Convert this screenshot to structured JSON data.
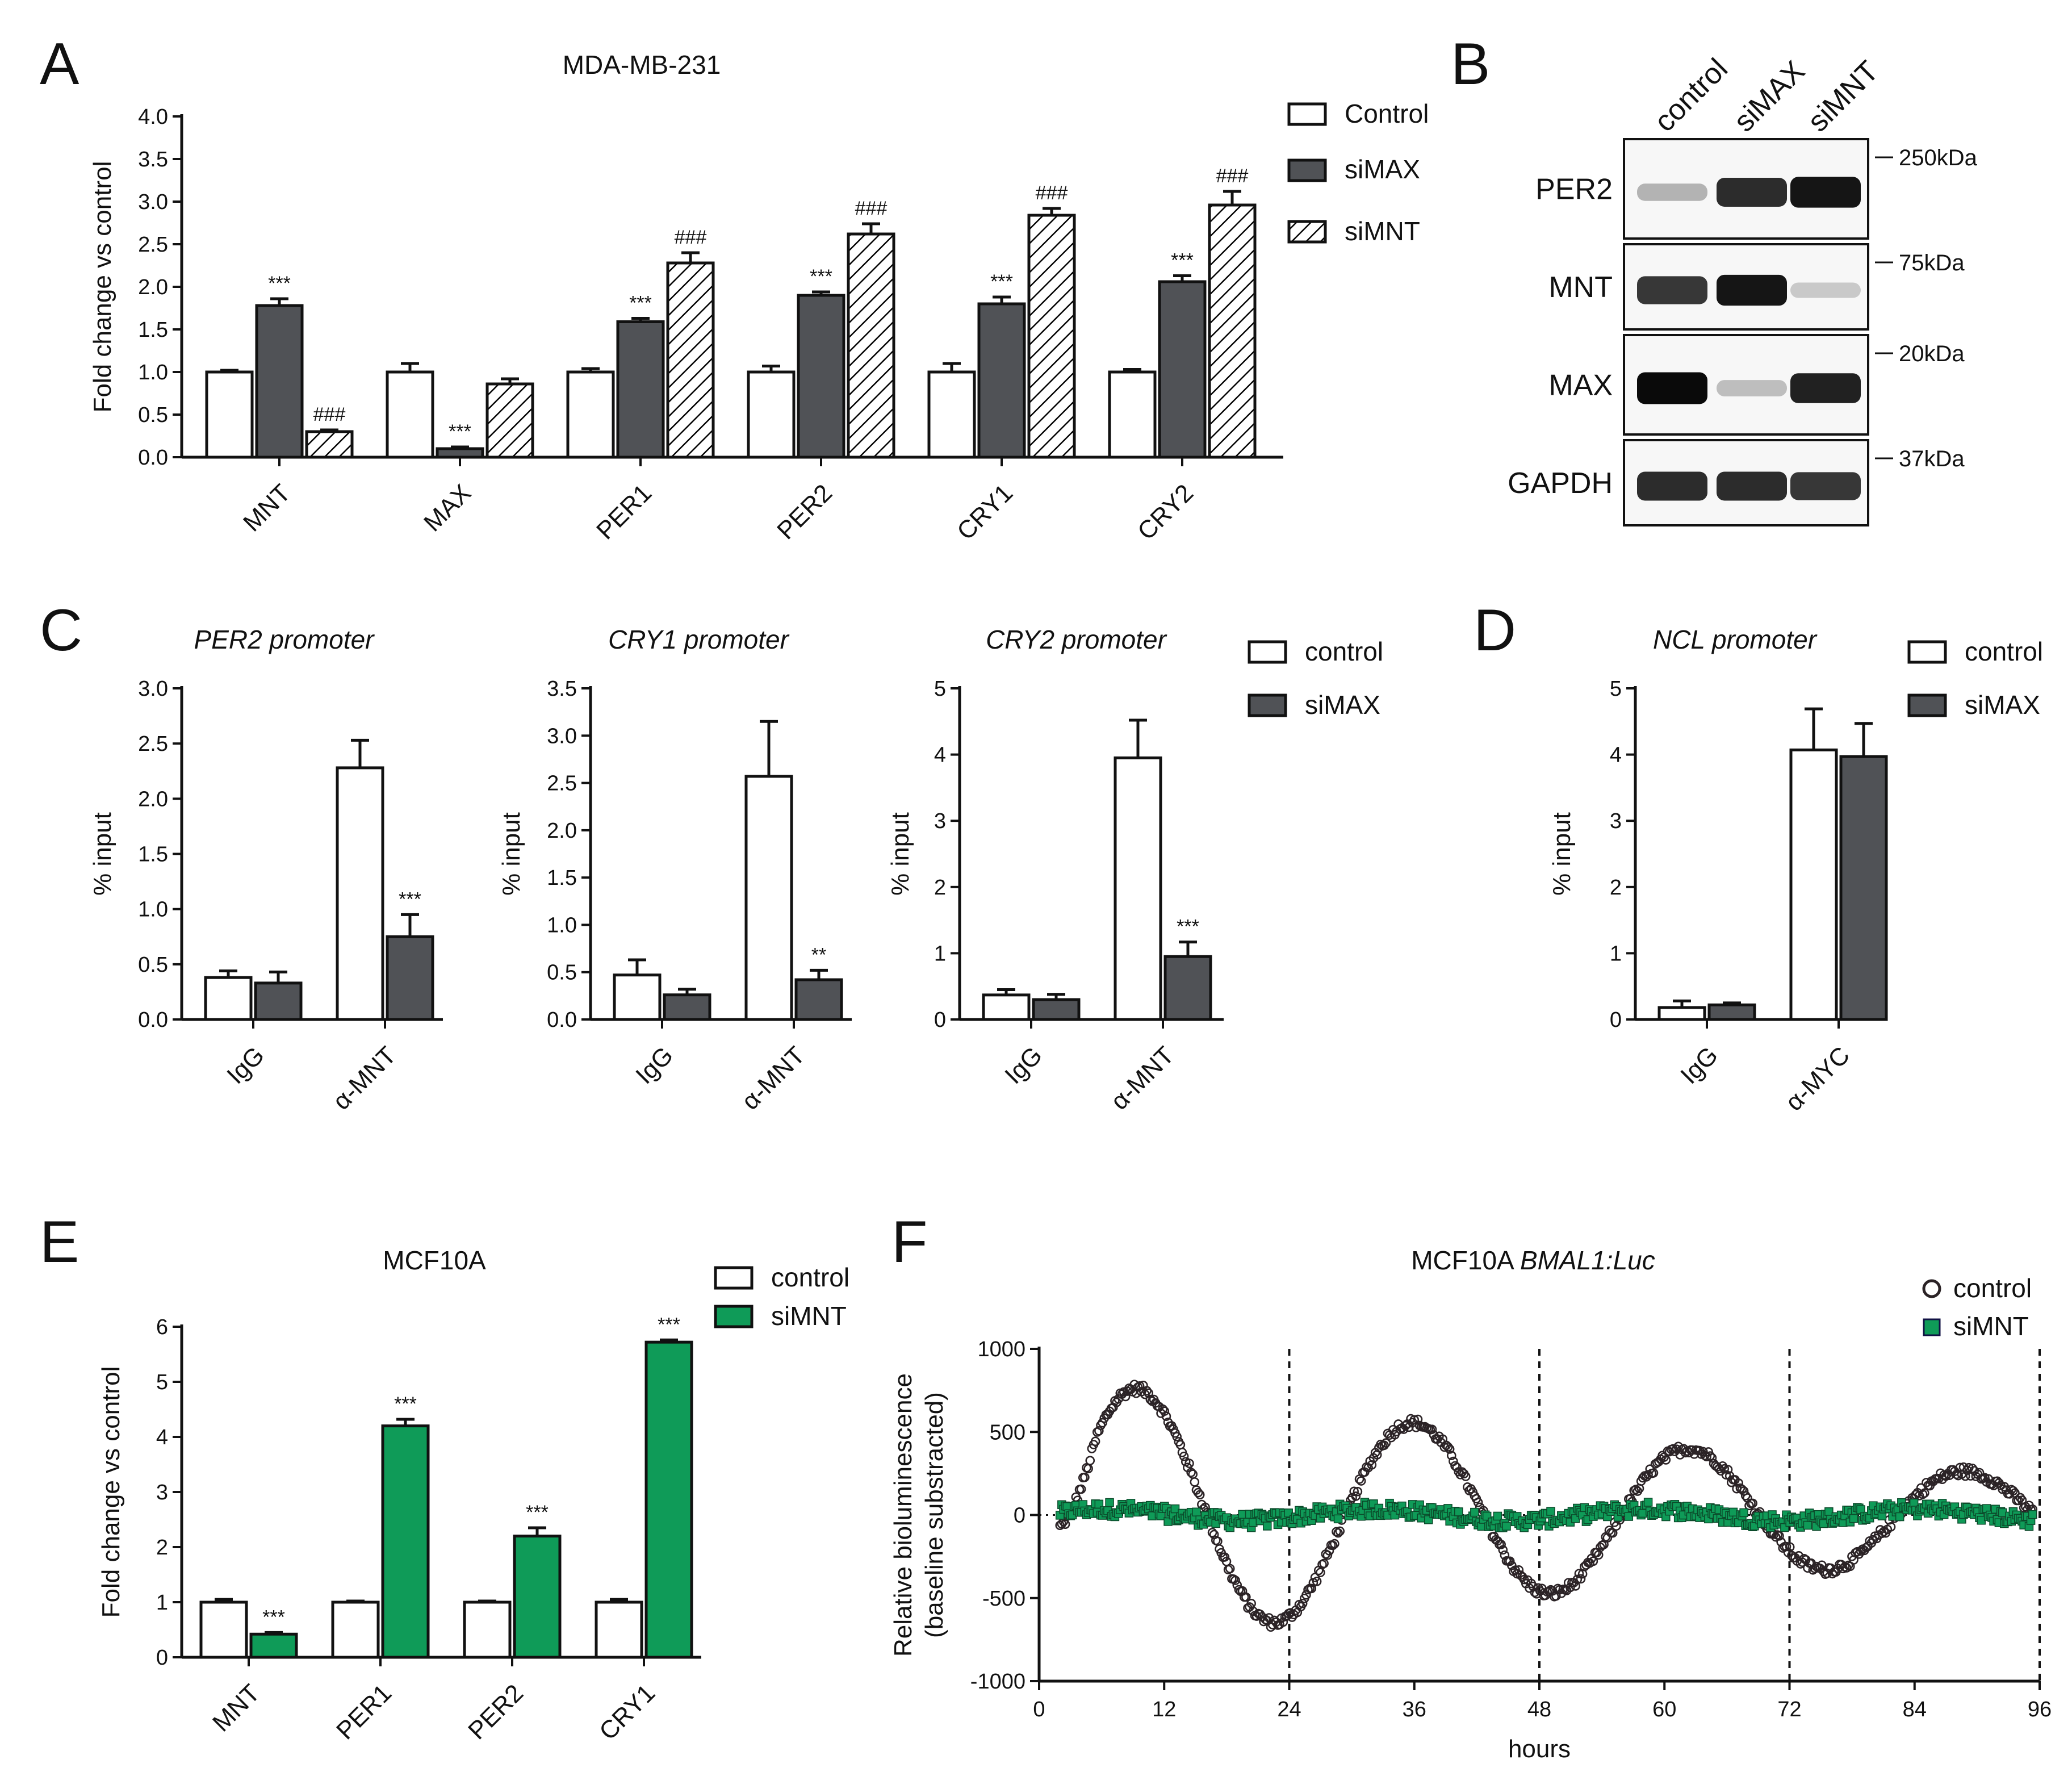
{
  "panels": {
    "A": "A",
    "B": "B",
    "C": "C",
    "D": "D",
    "E": "E",
    "F": "F"
  },
  "colors": {
    "control": "#ffffff",
    "siMAX": "#505256",
    "siMNT_hatch": "#000000",
    "siMNT_green": "#0f9b58",
    "axis": "#111111"
  },
  "chart_data": [
    {
      "id": "A",
      "type": "bar",
      "title": "MDA-MB-231",
      "ylabel": "Fold change vs control",
      "ylim": [
        0,
        4
      ],
      "yticks": [
        "0.0",
        "0.5",
        "1.0",
        "1.5",
        "2.0",
        "2.5",
        "3.0",
        "3.5",
        "4.0"
      ],
      "categories": [
        "MNT",
        "MAX",
        "PER1",
        "PER2",
        "CRY1",
        "CRY2"
      ],
      "series": [
        {
          "name": "Control",
          "style": "open",
          "values": [
            1.0,
            1.0,
            1.0,
            1.0,
            1.0,
            1.0
          ],
          "errors": [
            0.02,
            0.1,
            0.04,
            0.07,
            0.1,
            0.03
          ],
          "marks": [
            "",
            "",
            "",
            "",
            "",
            ""
          ]
        },
        {
          "name": "siMAX",
          "style": "dark",
          "values": [
            1.78,
            0.1,
            1.59,
            1.9,
            1.8,
            2.06
          ],
          "errors": [
            0.08,
            0.02,
            0.04,
            0.04,
            0.08,
            0.07
          ],
          "marks": [
            "***",
            "***",
            "***",
            "***",
            "***",
            "***"
          ]
        },
        {
          "name": "siMNT",
          "style": "hatch",
          "values": [
            0.3,
            0.86,
            2.28,
            2.62,
            2.84,
            2.96
          ],
          "errors": [
            0.02,
            0.06,
            0.12,
            0.12,
            0.08,
            0.16
          ],
          "marks": [
            "###",
            "",
            "###",
            "###",
            "###",
            "###"
          ]
        }
      ]
    },
    {
      "id": "C1",
      "type": "bar",
      "title": "PER2 promoter",
      "ylabel": "% input",
      "ylim": [
        0,
        3
      ],
      "yticks": [
        "0.0",
        "0.5",
        "1.0",
        "1.5",
        "2.0",
        "2.5",
        "3.0"
      ],
      "categories": [
        "IgG",
        "α-MNT"
      ],
      "series": [
        {
          "name": "control",
          "style": "open",
          "values": [
            0.38,
            2.28
          ],
          "errors": [
            0.06,
            0.25
          ],
          "marks": [
            "",
            ""
          ]
        },
        {
          "name": "siMAX",
          "style": "dark",
          "values": [
            0.33,
            0.75
          ],
          "errors": [
            0.1,
            0.2
          ],
          "marks": [
            "",
            "***"
          ]
        }
      ]
    },
    {
      "id": "C2",
      "type": "bar",
      "title": "CRY1 promoter",
      "ylabel": "% input",
      "ylim": [
        0,
        3.5
      ],
      "yticks": [
        "0.0",
        "0.5",
        "1.0",
        "1.5",
        "2.0",
        "2.5",
        "3.0",
        "3.5"
      ],
      "categories": [
        "IgG",
        "α-MNT"
      ],
      "series": [
        {
          "name": "control",
          "style": "open",
          "values": [
            0.47,
            2.57
          ],
          "errors": [
            0.16,
            0.58
          ],
          "marks": [
            "",
            ""
          ]
        },
        {
          "name": "siMAX",
          "style": "dark",
          "values": [
            0.26,
            0.42
          ],
          "errors": [
            0.06,
            0.1
          ],
          "marks": [
            "",
            "**"
          ]
        }
      ]
    },
    {
      "id": "C3",
      "type": "bar",
      "title": "CRY2 promoter",
      "ylabel": "% input",
      "ylim": [
        0,
        5
      ],
      "yticks": [
        "0",
        "1",
        "2",
        "3",
        "4",
        "5"
      ],
      "categories": [
        "IgG",
        "α-MNT"
      ],
      "series": [
        {
          "name": "control",
          "style": "open",
          "values": [
            0.37,
            3.95
          ],
          "errors": [
            0.08,
            0.57
          ],
          "marks": [
            "",
            ""
          ]
        },
        {
          "name": "siMAX",
          "style": "dark",
          "values": [
            0.3,
            0.95
          ],
          "errors": [
            0.08,
            0.22
          ],
          "marks": [
            "",
            "***"
          ]
        }
      ]
    },
    {
      "id": "D",
      "type": "bar",
      "title": "NCL promoter",
      "ylabel": "% input",
      "ylim": [
        0,
        5
      ],
      "yticks": [
        "0",
        "1",
        "2",
        "3",
        "4",
        "5"
      ],
      "categories": [
        "IgG",
        "α-MYC"
      ],
      "series": [
        {
          "name": "control",
          "style": "open",
          "values": [
            0.18,
            4.07
          ],
          "errors": [
            0.1,
            0.62
          ],
          "marks": [
            "",
            ""
          ]
        },
        {
          "name": "siMAX",
          "style": "dark",
          "values": [
            0.22,
            3.97
          ],
          "errors": [
            0.03,
            0.5
          ],
          "marks": [
            "",
            ""
          ]
        }
      ]
    },
    {
      "id": "E",
      "type": "bar",
      "title": "MCF10A",
      "ylabel": "Fold change vs control",
      "ylim": [
        0,
        6
      ],
      "yticks": [
        "0",
        "1",
        "2",
        "3",
        "4",
        "5",
        "6"
      ],
      "categories": [
        "MNT",
        "PER1",
        "PER2",
        "CRY1"
      ],
      "series": [
        {
          "name": "control",
          "style": "open",
          "values": [
            1.0,
            1.0,
            1.0,
            1.0
          ],
          "errors": [
            0.05,
            0.02,
            0.02,
            0.05
          ],
          "marks": [
            "",
            "",
            "",
            ""
          ]
        },
        {
          "name": "siMNT",
          "style": "green",
          "values": [
            0.42,
            4.2,
            2.2,
            5.72
          ],
          "errors": [
            0.03,
            0.12,
            0.15,
            0.04
          ],
          "marks": [
            "***",
            "***",
            "***",
            "***"
          ]
        }
      ]
    },
    {
      "id": "F",
      "type": "scatter",
      "title_prefix": "MCF10A ",
      "title_italic": "BMAL1:Luc",
      "xlabel": "hours",
      "ylabel_line1": "Relative bioluminescence",
      "ylabel_line2": "(baseline substracted)",
      "xlim": [
        0,
        96
      ],
      "ylim": [
        -1000,
        1000
      ],
      "xticks": [
        "0",
        "12",
        "24",
        "36",
        "48",
        "60",
        "72",
        "84",
        "96"
      ],
      "yticks": [
        "-1000",
        "-500",
        "0",
        "500",
        "1000"
      ],
      "vlines": [
        24,
        48,
        72,
        96
      ],
      "x_start": 2,
      "x_end": 95.5,
      "step": 0.17,
      "series": [
        {
          "name": "control",
          "marker": "open-circle",
          "model": "damped-sine",
          "amplitude": 870,
          "amplitude_end": 230,
          "period": 26.5,
          "peak_hour": 9.5,
          "noise": 30
        },
        {
          "name": "siMNT",
          "marker": "green-square",
          "model": "flat",
          "amplitude": 35,
          "noise": 45
        }
      ]
    }
  ],
  "legends": {
    "A": [
      "Control",
      "siMAX",
      "siMNT"
    ],
    "C": [
      "control",
      "siMAX"
    ],
    "D": [
      "control",
      "siMAX"
    ],
    "E": [
      "control",
      "siMNT"
    ],
    "F": [
      "control",
      "siMNT"
    ]
  },
  "western_blot": {
    "lanes": [
      "control",
      "siMAX",
      "siMNT"
    ],
    "rows": [
      {
        "protein": "PER2",
        "kda": "250kDa",
        "intensities": [
          0.25,
          0.85,
          0.95
        ]
      },
      {
        "protein": "MNT",
        "kda": "75kDa",
        "intensities": [
          0.8,
          0.95,
          0.15
        ]
      },
      {
        "protein": "MAX",
        "kda": "20kDa",
        "intensities": [
          1.0,
          0.2,
          0.9
        ]
      },
      {
        "protein": "GAPDH",
        "kda": "37kDa",
        "intensities": [
          0.85,
          0.85,
          0.8
        ]
      }
    ]
  }
}
